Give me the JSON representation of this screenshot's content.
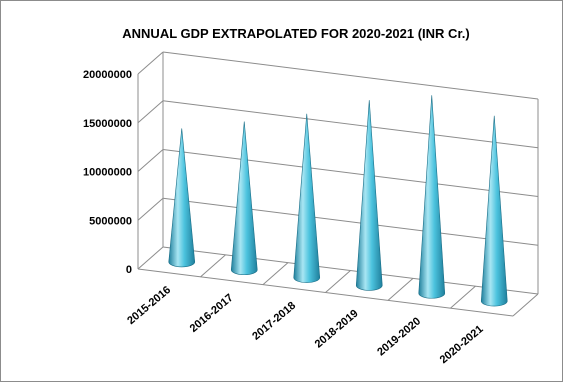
{
  "chart_data": {
    "type": "bar",
    "style": "3d-cone",
    "title": "ANNUAL GDP EXTRAPOLATED FOR 2020-2021 (INR Cr.)",
    "categories": [
      "2015-2016",
      "2016-2017",
      "2017-2018",
      "2018-2019",
      "2019-2020",
      "2020-2021"
    ],
    "values": [
      13700000,
      15200000,
      16800000,
      19000000,
      20300000,
      19000000
    ],
    "yticks": [
      "0",
      "5000000",
      "10000000",
      "15000000",
      "20000000"
    ],
    "ylim": [
      0,
      20000000
    ],
    "grid": true,
    "legend": "none",
    "colors": {
      "cone_light": "#a8e6f3",
      "cone_mid": "#4cc3de",
      "cone_dark": "#1f7f9c",
      "grid": "#8c8c8c"
    }
  }
}
